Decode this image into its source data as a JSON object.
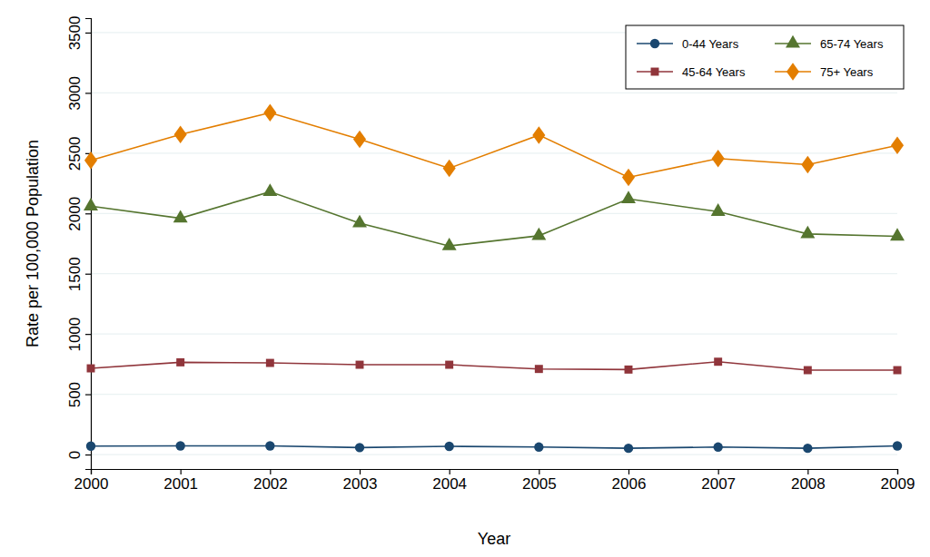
{
  "chart_data": {
    "type": "line",
    "x_label": "Year",
    "y_label": "Rate per 100,000 Population",
    "x": [
      2000,
      2001,
      2002,
      2003,
      2004,
      2005,
      2006,
      2007,
      2008,
      2009
    ],
    "series": [
      {
        "name": "0-44 Years",
        "color": "#1a476f",
        "marker": "circle",
        "values": [
          70,
          72,
          72,
          58,
          68,
          62,
          52,
          62,
          52,
          72
        ]
      },
      {
        "name": "45-64 Years",
        "color": "#90353b",
        "marker": "square",
        "values": [
          715,
          765,
          760,
          745,
          745,
          710,
          705,
          770,
          700,
          700
        ]
      },
      {
        "name": "65-74 Years",
        "color": "#55752f",
        "marker": "triangle",
        "values": [
          2060,
          1960,
          2180,
          1920,
          1730,
          1815,
          2120,
          2015,
          1830,
          1810
        ]
      },
      {
        "name": "75+ Years",
        "color": "#e37e00",
        "marker": "diamond",
        "values": [
          2440,
          2655,
          2835,
          2615,
          2375,
          2650,
          2300,
          2455,
          2405,
          2565
        ]
      }
    ],
    "xlim": [
      2000,
      2009
    ],
    "xticks": [
      2000,
      2001,
      2002,
      2003,
      2004,
      2005,
      2006,
      2007,
      2008,
      2009
    ],
    "ylim": [
      -120,
      3620
    ],
    "yticks": [
      0,
      500,
      1000,
      1500,
      2000,
      2500,
      3000,
      3500
    ],
    "grid": true,
    "legend": "upper right"
  }
}
